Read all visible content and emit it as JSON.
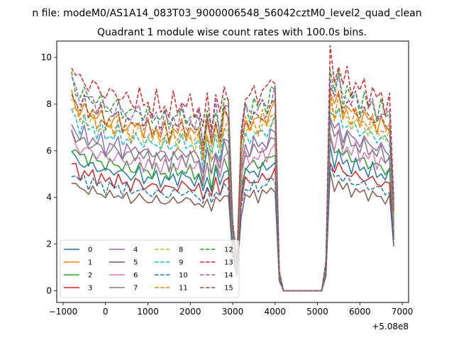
{
  "chart_data": {
    "type": "line",
    "suptitle": "n file: modeM0/AS1A14_083T03_9000006548_56042cztM0_level2_quad_clean",
    "title": "Quadrant 1 module wise count rates with 100.0s bins.",
    "xlabel": "",
    "ylabel": "",
    "offset_label": "+5.08e8",
    "xlim": [
      -1150,
      7150
    ],
    "ylim": [
      -0.5,
      10.7
    ],
    "xticks": [
      -1000,
      0,
      1000,
      2000,
      3000,
      4000,
      5000,
      6000,
      7000
    ],
    "xtick_labels": [
      "−1000",
      "0",
      "1000",
      "2000",
      "3000",
      "4000",
      "5000",
      "6000",
      "7000"
    ],
    "yticks": [
      0,
      2,
      4,
      6,
      8,
      10
    ],
    "ytick_labels": [
      "0",
      "2",
      "4",
      "6",
      "8",
      "10"
    ],
    "grid": false,
    "legend_position": "lower-left",
    "profile": {
      "description": "normalized time profile shared by all modules (1 = module baseline level)",
      "x": [
        -800,
        -700,
        -600,
        -500,
        -400,
        -300,
        -200,
        -100,
        0,
        100,
        200,
        300,
        400,
        500,
        600,
        700,
        800,
        900,
        1000,
        1100,
        1200,
        1300,
        1400,
        1500,
        1600,
        1700,
        1800,
        1900,
        2000,
        2100,
        2200,
        2300,
        2400,
        2500,
        2600,
        2700,
        2800,
        2900,
        3000,
        3100,
        3200,
        3300,
        3400,
        3500,
        3600,
        3700,
        3800,
        3900,
        4000,
        4100,
        4200,
        4300,
        4400,
        4500,
        4600,
        4700,
        4800,
        4900,
        5000,
        5100,
        5200,
        5300,
        5400,
        5500,
        5600,
        5700,
        5800,
        5900,
        6000,
        6100,
        6200,
        6300,
        6400,
        6500,
        6600,
        6700,
        6800
      ],
      "f": [
        1.12,
        1.08,
        1.02,
        1.06,
        1.0,
        1.04,
        0.98,
        1.02,
        0.95,
        0.99,
        0.96,
        1.0,
        0.93,
        0.97,
        0.92,
        0.95,
        0.97,
        0.91,
        0.94,
        0.9,
        0.95,
        0.89,
        0.93,
        0.88,
        0.94,
        0.9,
        0.95,
        0.91,
        0.93,
        0.89,
        0.92,
        0.8,
        0.95,
        0.83,
        0.97,
        0.86,
        1.0,
        0.98,
        0.35,
        0.15,
        0.8,
        0.98,
        0.94,
        1.0,
        0.95,
        1.01,
        0.98,
        1.04,
        1.06,
        0.1,
        0.0,
        0.0,
        0.0,
        0.0,
        0.0,
        0.0,
        0.0,
        0.0,
        0.0,
        0.0,
        0.15,
        1.17,
        1.05,
        1.13,
        1.02,
        1.07,
        1.0,
        1.04,
        0.98,
        1.02,
        0.96,
        1.0,
        0.94,
        0.97,
        0.92,
        0.95,
        0.45
      ]
    },
    "series": [
      {
        "name": "0",
        "color": "#1f77b4",
        "dash": "solid",
        "level": 5.25
      },
      {
        "name": "1",
        "color": "#ff7f0e",
        "dash": "solid",
        "level": 7.45
      },
      {
        "name": "2",
        "color": "#2ca02c",
        "dash": "solid",
        "level": 5.55
      },
      {
        "name": "3",
        "color": "#d62728",
        "dash": "solid",
        "level": 4.85
      },
      {
        "name": "4",
        "color": "#9467bd",
        "dash": "solid",
        "level": 6.4
      },
      {
        "name": "5",
        "color": "#8c564b",
        "dash": "solid",
        "level": 4.2
      },
      {
        "name": "6",
        "color": "#e377c2",
        "dash": "solid",
        "level": 5.85
      },
      {
        "name": "7",
        "color": "#7f7f7f",
        "dash": "solid",
        "level": 6.15
      },
      {
        "name": "8",
        "color": "#bcbd22",
        "dash": "dashed",
        "level": 7.05
      },
      {
        "name": "9",
        "color": "#17becf",
        "dash": "dashed",
        "level": 6.85
      },
      {
        "name": "10",
        "color": "#1f77b4",
        "dash": "dashed",
        "level": 4.55
      },
      {
        "name": "11",
        "color": "#ff7f0e",
        "dash": "dashed",
        "level": 7.3
      },
      {
        "name": "12",
        "color": "#2ca02c",
        "dash": "dashed",
        "level": 8.1
      },
      {
        "name": "13",
        "color": "#d62728",
        "dash": "dashed",
        "level": 8.65
      },
      {
        "name": "14",
        "color": "#9467bd",
        "dash": "dashed",
        "level": 8.0
      },
      {
        "name": "15",
        "color": "#8c564b",
        "dash": "dashed",
        "level": 7.6
      }
    ]
  }
}
